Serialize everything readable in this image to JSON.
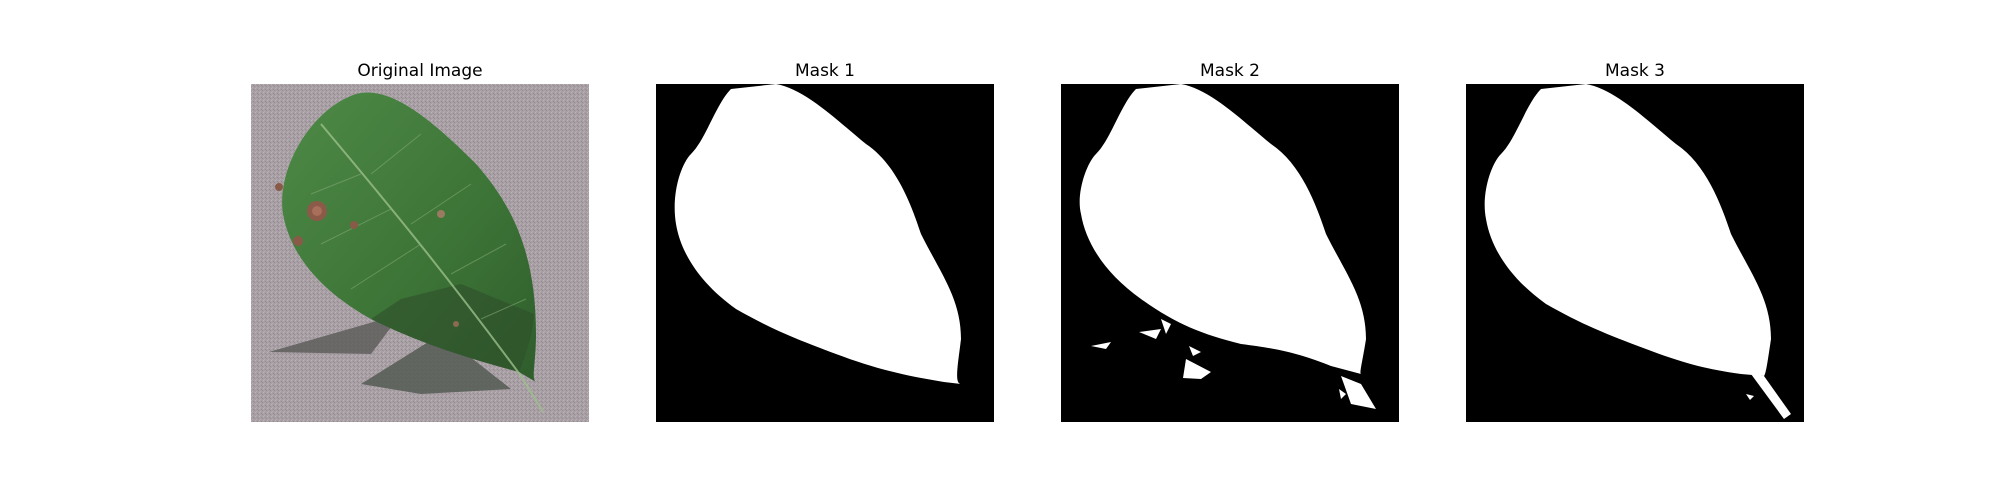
{
  "figure": {
    "panels": [
      {
        "title": "Original Image",
        "kind": "photo"
      },
      {
        "title": "Mask 1",
        "kind": "mask"
      },
      {
        "title": "Mask 2",
        "kind": "mask"
      },
      {
        "title": "Mask 3",
        "kind": "mask"
      }
    ]
  },
  "colors": {
    "background_surface": "#a79fa4",
    "leaf": "#3f7a3a",
    "leaf_dark": "#2c5a2a",
    "shadow": "#4c5a4a",
    "mask_bg": "#000000",
    "mask_fg": "#ffffff",
    "spot": "#8a5a4a"
  }
}
